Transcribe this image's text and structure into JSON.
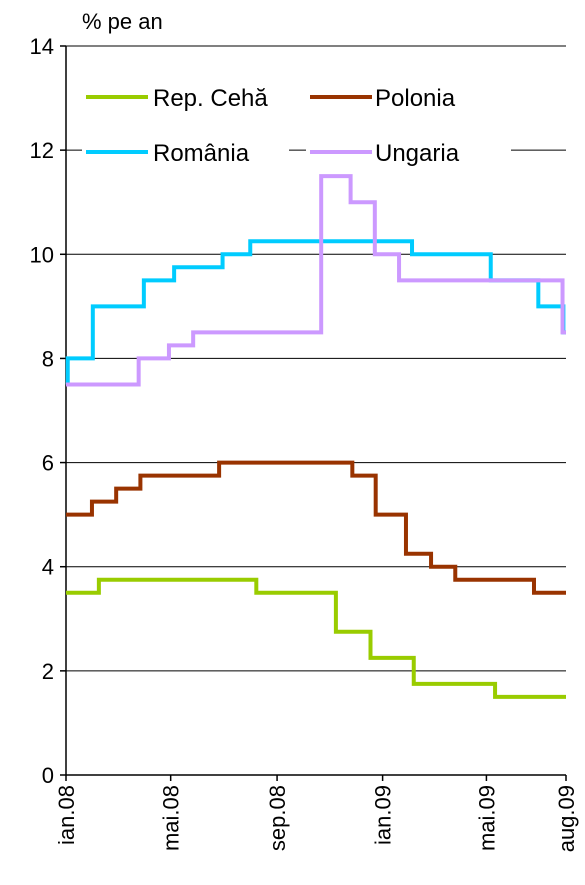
{
  "chart_data": {
    "type": "line",
    "line_shape": "step",
    "title": "",
    "ylabel": "% pe an",
    "xlabel": "",
    "ylim": [
      0,
      14
    ],
    "yticks": [
      0,
      2,
      4,
      6,
      8,
      10,
      12,
      14
    ],
    "xlim": [
      "2008-01-01",
      "2009-08-01"
    ],
    "xticks": [
      {
        "value": "2008-01-01",
        "label": "ian.08"
      },
      {
        "value": "2008-05-01",
        "label": "mai.08"
      },
      {
        "value": "2008-09-01",
        "label": "sep.08"
      },
      {
        "value": "2009-01-01",
        "label": "ian.09"
      },
      {
        "value": "2009-05-01",
        "label": "mai.09"
      },
      {
        "value": "2009-08-01",
        "label": "aug.09"
      }
    ],
    "grid": {
      "horizontal": true,
      "vertical": false
    },
    "legend": {
      "position": "top-inside",
      "columns": 2
    },
    "series": [
      {
        "name": "Rep. Cehă",
        "color": "#99cc00",
        "points": [
          [
            "2008-01-01",
            3.5
          ],
          [
            "2008-02-08",
            3.75
          ],
          [
            "2008-08-08",
            3.5
          ],
          [
            "2008-11-08",
            2.75
          ],
          [
            "2008-12-18",
            2.25
          ],
          [
            "2009-02-06",
            1.75
          ],
          [
            "2009-05-11",
            1.5
          ],
          [
            "2009-08-01",
            1.5
          ]
        ]
      },
      {
        "name": "Polonia",
        "color": "#993300",
        "points": [
          [
            "2008-01-01",
            5.0
          ],
          [
            "2008-01-31",
            5.25
          ],
          [
            "2008-02-28",
            5.5
          ],
          [
            "2008-03-27",
            5.75
          ],
          [
            "2008-06-26",
            6.0
          ],
          [
            "2008-11-27",
            5.75
          ],
          [
            "2008-12-24",
            5.0
          ],
          [
            "2009-01-28",
            4.25
          ],
          [
            "2009-02-26",
            4.0
          ],
          [
            "2009-03-26",
            3.75
          ],
          [
            "2009-06-25",
            3.5
          ],
          [
            "2009-08-01",
            3.5
          ]
        ]
      },
      {
        "name": "România",
        "color": "#00ccff",
        "points": [
          [
            "2008-01-01",
            7.5
          ],
          [
            "2008-01-03",
            8.0
          ],
          [
            "2008-02-01",
            9.0
          ],
          [
            "2008-03-31",
            9.5
          ],
          [
            "2008-05-05",
            9.75
          ],
          [
            "2008-06-30",
            10.0
          ],
          [
            "2008-08-01",
            10.25
          ],
          [
            "2009-02-04",
            10.0
          ],
          [
            "2009-05-06",
            9.5
          ],
          [
            "2009-06-30",
            9.0
          ],
          [
            "2009-07-29",
            8.5
          ],
          [
            "2009-08-01",
            8.5
          ]
        ]
      },
      {
        "name": "Ungaria",
        "color": "#cc99ff",
        "points": [
          [
            "2008-01-01",
            7.5
          ],
          [
            "2008-03-25",
            8.0
          ],
          [
            "2008-04-29",
            8.25
          ],
          [
            "2008-05-27",
            8.5
          ],
          [
            "2008-10-22",
            11.5
          ],
          [
            "2008-11-25",
            11.0
          ],
          [
            "2008-12-23",
            10.0
          ],
          [
            "2009-01-20",
            9.5
          ],
          [
            "2009-07-28",
            8.5
          ],
          [
            "2009-08-01",
            8.5
          ]
        ]
      }
    ]
  }
}
